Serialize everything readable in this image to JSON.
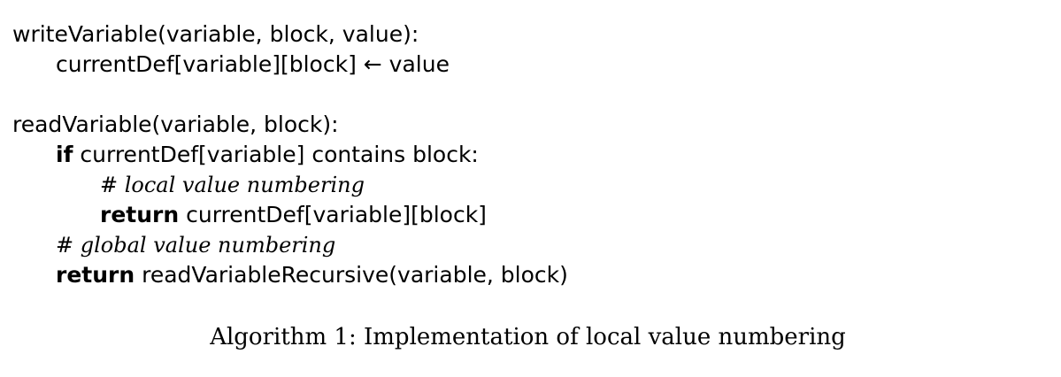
{
  "algorithm": {
    "write_signature": "writeVariable(variable, block, value):",
    "write_body": "currentDef[variable][block] ← value",
    "read_signature": "readVariable(variable, block):",
    "if_keyword": "if",
    "if_condition": " currentDef[variable] contains block:",
    "comment_local": "# local value numbering",
    "return_keyword_1": "return",
    "return_expr_1": " currentDef[variable][block]",
    "comment_global": "# global value numbering",
    "return_keyword_2": "return",
    "return_expr_2": " readVariableRecursive(variable, block)"
  },
  "caption": "Algorithm 1: Implementation of local value numbering"
}
